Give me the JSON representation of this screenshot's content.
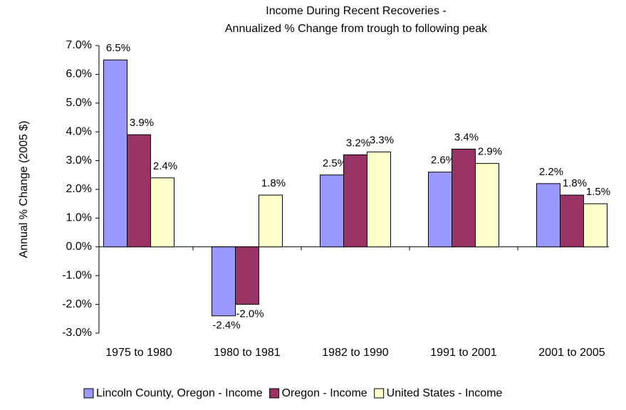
{
  "chart_data": {
    "type": "bar",
    "title": [
      "Income During Recent Recoveries -",
      "Annualized % Change from trough to following peak"
    ],
    "ylabel": "Annual % Change (2005 $)",
    "categories": [
      "1975 to 1980",
      "1980 to 1981",
      "1982 to 1990",
      "1991 to 2001",
      "2001 to 2005"
    ],
    "series": [
      {
        "name": "Lincoln County, Oregon - Income",
        "color": "#9999ff",
        "values": [
          6.5,
          -2.4,
          2.5,
          2.6,
          2.2
        ],
        "value_labels": [
          "6.5%",
          "-2.4%",
          "2.5%",
          "2.6%",
          "2.2%"
        ]
      },
      {
        "name": "Oregon - Income",
        "color": "#993366",
        "values": [
          3.9,
          -2.0,
          3.2,
          3.4,
          1.8
        ],
        "value_labels": [
          "3.9%",
          "-2.0%",
          "3.2%",
          "3.4%",
          "1.8%"
        ]
      },
      {
        "name": "United States - Income",
        "color": "#ffffcc",
        "values": [
          2.4,
          1.8,
          3.3,
          2.9,
          1.5
        ],
        "value_labels": [
          "2.4%",
          "1.8%",
          "3.3%",
          "2.9%",
          "1.5%"
        ]
      }
    ],
    "ylim": [
      -3,
      7
    ],
    "yticks": [
      {
        "value": -3,
        "label": "-3.0%"
      },
      {
        "value": -2,
        "label": "-2.0%"
      },
      {
        "value": -1,
        "label": "-1.0%"
      },
      {
        "value": 0,
        "label": "0.0%"
      },
      {
        "value": 1,
        "label": "1.0%"
      },
      {
        "value": 2,
        "label": "2.0%"
      },
      {
        "value": 3,
        "label": "3.0%"
      },
      {
        "value": 4,
        "label": "4.0%"
      },
      {
        "value": 5,
        "label": "5.0%"
      },
      {
        "value": 6,
        "label": "6.0%"
      },
      {
        "value": 7,
        "label": "7.0%"
      }
    ],
    "legend": "bottom"
  }
}
